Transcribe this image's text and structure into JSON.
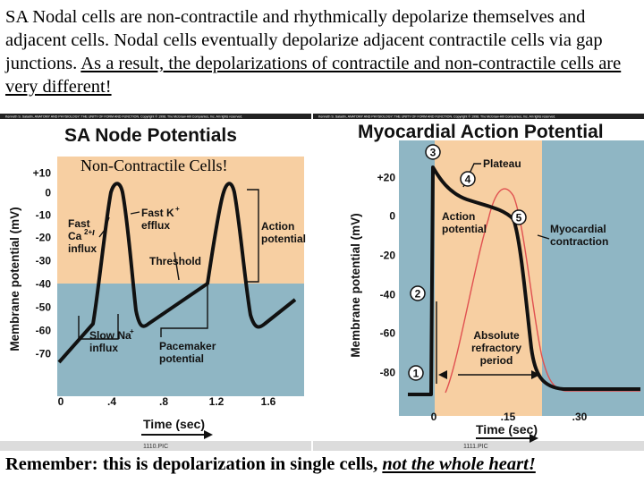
{
  "intro": {
    "plain": "SA Nodal cells are non-contractile and rhythmically depolarize themselves and adjacent cells.  Nodal cells eventually depolarize adjacent contractile cells via gap junctions. ",
    "underlined": "As a result, the depolarizations of contractile and non-contractile cells are very different!"
  },
  "footer": {
    "plain": "Remember: this is depolarization in single cells, ",
    "emphasis": "not the whole heart!"
  },
  "left_panel": {
    "credit": "Kenneth S. Saladin, ANATOMY AND PHYSIOLOGY: THE UNITY OF FORM AND FUNCTION. Copyright © 1998. The McGraw-Hill Companies, Inc. All rights reserved.",
    "title": "SA Node Potentials",
    "overlay_label": "Non-Contractile Cells!",
    "ylabel": "Membrane potential (mV)",
    "xlabel": "Time (sec)",
    "y_ticks": [
      "+10",
      "0",
      "-10",
      "-20",
      "-30",
      "-40",
      "-50",
      "-60",
      "-70"
    ],
    "x_ticks": [
      "0",
      ".4",
      ".8",
      "1.2",
      "1.6"
    ],
    "labels": {
      "fast_ca_1": "Fast",
      "fast_ca_2": "Ca",
      "fast_ca_sup": "2+",
      "fast_ca_3": "influx",
      "fast_k_1": "Fast K",
      "fast_k_sup": "+",
      "fast_k_2": "efflux",
      "action_1": "Action",
      "action_2": "potential",
      "threshold": "Threshold",
      "slow_na_1": "Slow Na",
      "slow_na_sup": "+",
      "slow_na_2": "influx",
      "pacemaker_1": "Pacemaker",
      "pacemaker_2": "potential"
    },
    "figure_id": "1110.PIC",
    "colors": {
      "upper": "#f7cfa2",
      "lower": "#8fb6c4",
      "line": "#111111"
    }
  },
  "right_panel": {
    "credit": "Kenneth S. Saladin, ANATOMY AND PHYSIOLOGY: THE UNITY OF FORM AND FUNCTION. Copyright © 1998. The McGraw-Hill Companies, Inc. All rights reserved.",
    "title": "Myocardial Action Potential",
    "ylabel": "Membrane potential (mV)",
    "xlabel": "Time (sec)",
    "y_ticks": [
      "+20",
      "0",
      "-20",
      "-40",
      "-60",
      "-80"
    ],
    "x_ticks": [
      "0",
      ".15",
      ".30"
    ],
    "markers": [
      "1",
      "2",
      "3",
      "4",
      "5"
    ],
    "labels": {
      "plateau": "Plateau",
      "action_1": "Action",
      "action_2": "potential",
      "myo_1": "Myocardial",
      "myo_2": "contraction",
      "arp_1": "Absolute",
      "arp_2": "refractory",
      "arp_3": "period"
    },
    "figure_id": "1111.PIC",
    "colors": {
      "band": "#f7cfa2",
      "bg": "#8fb6c4",
      "line": "#111111",
      "contraction": "#e05050"
    }
  }
}
